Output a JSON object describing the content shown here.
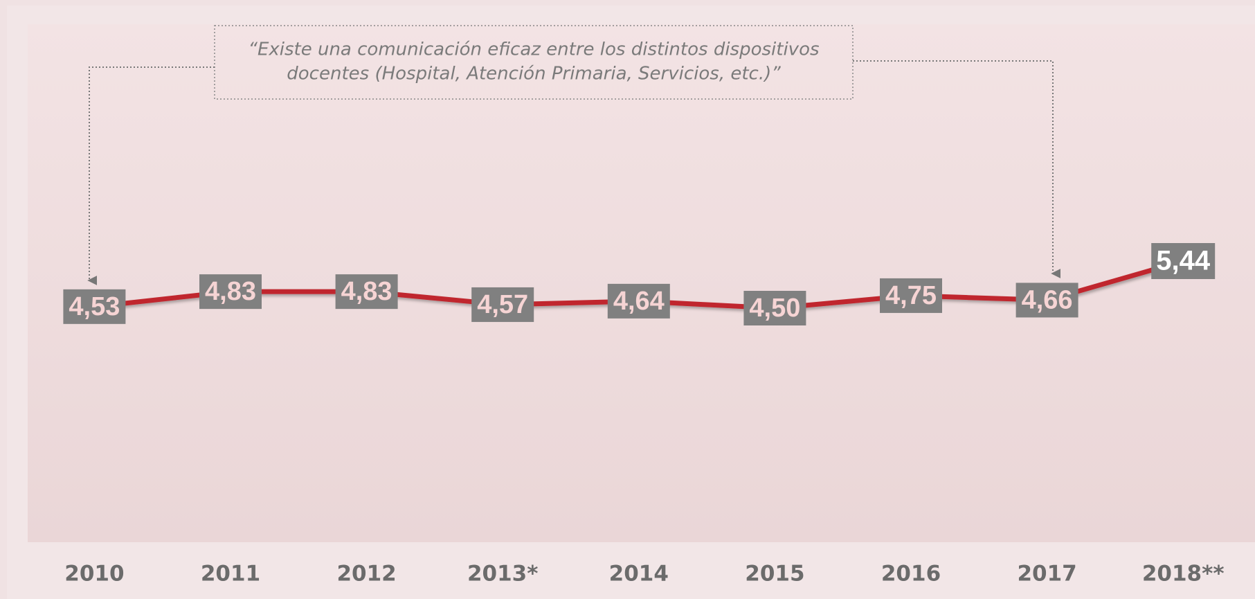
{
  "chart_data": {
    "type": "line",
    "annotation": [
      "“Existe una comunicación eficaz entre los distintos dispositivos",
      "docentes (Hospital, Atención Primaria, Servicios, etc.)”"
    ],
    "categories": [
      "2010",
      "2011",
      "2012",
      "2013*",
      "2014",
      "2015",
      "2016",
      "2017",
      "2018**"
    ],
    "series": [
      {
        "color": "#c0272d",
        "values": [
          4.53,
          4.83,
          4.83,
          4.57,
          4.64,
          4.5,
          4.75,
          4.66,
          5.44
        ],
        "value_labels": [
          "4,53",
          "4,83",
          "4,83",
          "4,57",
          "4,64",
          "4,50",
          "4,75",
          "4,66",
          "5,44"
        ]
      }
    ]
  }
}
